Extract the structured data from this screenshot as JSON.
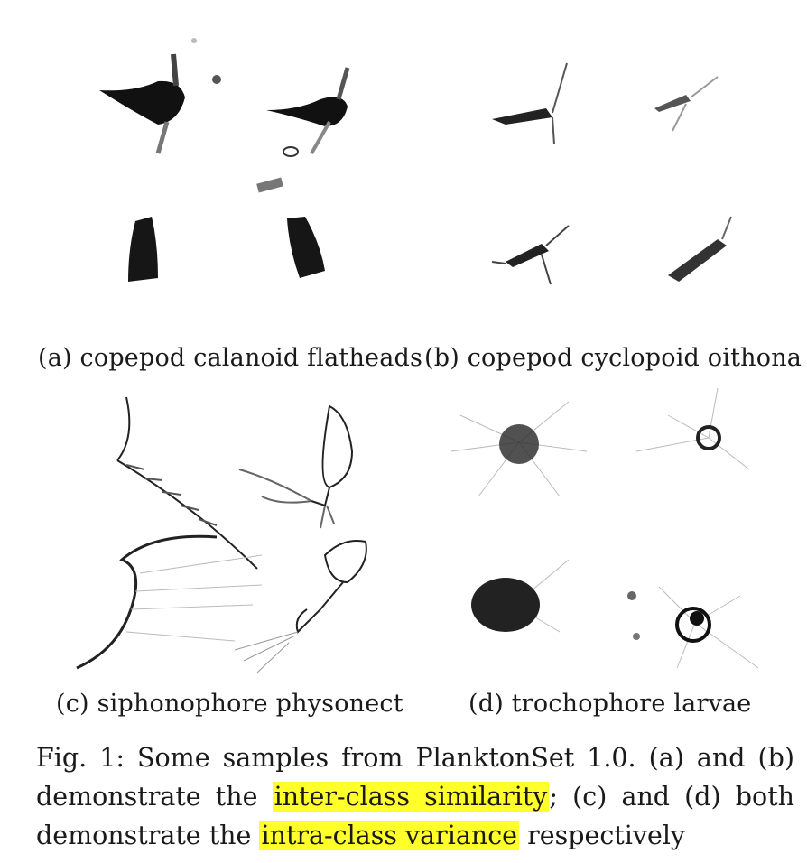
{
  "panels": [
    {
      "label": "(a) copepod calanoid flatheads"
    },
    {
      "label": "(b) copepod cyclopoid oithona"
    },
    {
      "label": "(c) siphonophore physonect"
    },
    {
      "label": "(d) trochophore larvae"
    }
  ],
  "caption": {
    "prefix": "Fig. 1: Some samples from PlanktonSet 1.0. (a) and (b) demonstrate the ",
    "highlight1": "inter-class similarity",
    "middle": "; (c) and (d) both demonstrate the ",
    "highlight2": "intra-class variance",
    "suffix": " respectively",
    "highlight_color": "#ffff2a"
  }
}
